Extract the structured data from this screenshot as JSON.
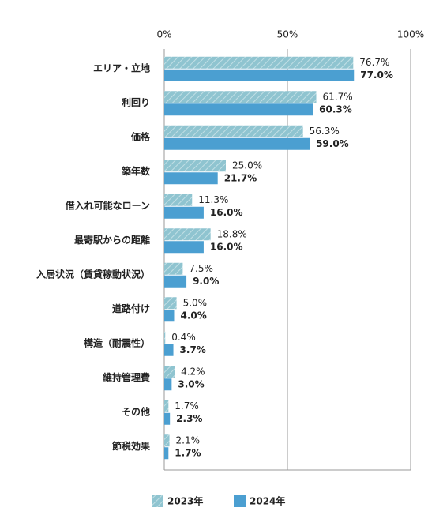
{
  "chart_data": {
    "type": "barh",
    "categories": [
      "エリア・立地",
      "利回り",
      "価格",
      "築年数",
      "借入れ可能なローン",
      "最寄駅からの距離",
      "入居状況（賃貸稼動状況）",
      "道路付け",
      "構造（耐震性）",
      "維持管理費",
      "その他",
      "節税効果"
    ],
    "series": [
      {
        "name": "2023年",
        "color": "#8fc4d0",
        "pattern": "hatch",
        "values": [
          76.7,
          61.7,
          56.3,
          25.0,
          11.3,
          18.8,
          7.5,
          5.0,
          0.4,
          4.2,
          1.7,
          2.1
        ],
        "value_labels": [
          "76.7%",
          "61.7%",
          "56.3%",
          "25.0%",
          "11.3%",
          "18.8%",
          "7.5%",
          "5.0%",
          "0.4%",
          "4.2%",
          "1.7%",
          "2.1%"
        ]
      },
      {
        "name": "2024年",
        "color": "#4b9fd1",
        "values": [
          77.0,
          60.3,
          59.0,
          21.7,
          16.0,
          16.0,
          9.0,
          4.0,
          3.7,
          3.0,
          2.3,
          1.7
        ],
        "value_labels": [
          "77.0%",
          "60.3%",
          "59.0%",
          "21.7%",
          "16.0%",
          "16.0%",
          "9.0%",
          "4.0%",
          "3.7%",
          "3.0%",
          "2.3%",
          "1.7%"
        ]
      }
    ],
    "xlim": [
      0,
      100
    ],
    "xticks": [
      {
        "value": 0,
        "label": "0%"
      },
      {
        "value": 50,
        "label": "50%"
      },
      {
        "value": 100,
        "label": "100%"
      }
    ],
    "grid": true,
    "legend": "bottom"
  }
}
